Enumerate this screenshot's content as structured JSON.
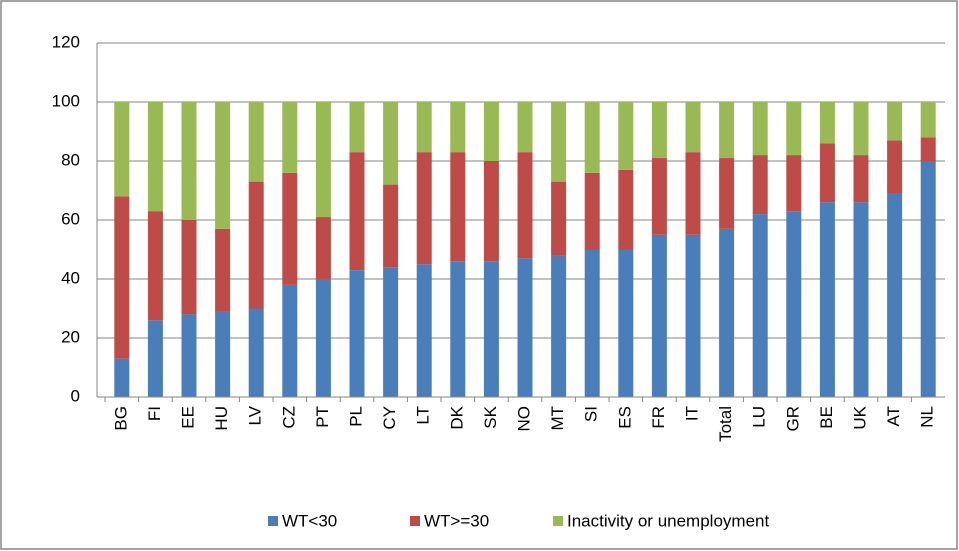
{
  "chart_data": {
    "type": "stacked-bar",
    "categories": [
      "BG",
      "FI",
      "EE",
      "HU",
      "LV",
      "CZ",
      "PT",
      "PL",
      "CY",
      "LT",
      "DK",
      "SK",
      "NO",
      "MT",
      "SI",
      "ES",
      "FR",
      "IT",
      "Total",
      "LU",
      "GR",
      "BE",
      "UK",
      "AT",
      "NL"
    ],
    "series": [
      {
        "name": "WT<30",
        "color": "#4a7ebb",
        "values": [
          13,
          26,
          28,
          29,
          30,
          38,
          40,
          43,
          44,
          45,
          46,
          46,
          47,
          48,
          50,
          50,
          55,
          55,
          57,
          62,
          63,
          66,
          66,
          69,
          80
        ]
      },
      {
        "name": "WT>=30",
        "color": "#be4b48",
        "values": [
          55,
          37,
          32,
          28,
          43,
          38,
          21,
          40,
          28,
          38,
          37,
          34,
          36,
          25,
          26,
          27,
          26,
          28,
          24,
          20,
          19,
          20,
          16,
          18,
          8
        ]
      },
      {
        "name": "Inactivity or unemployment",
        "color": "#98b954",
        "values": [
          32,
          37,
          40,
          43,
          27,
          24,
          39,
          17,
          28,
          17,
          17,
          20,
          17,
          27,
          24,
          23,
          19,
          17,
          19,
          18,
          18,
          14,
          18,
          13,
          12
        ]
      }
    ],
    "ylim": [
      0,
      120
    ],
    "yticks": [
      0,
      20,
      40,
      60,
      80,
      100,
      120
    ],
    "grid": true,
    "legend": "bottom"
  }
}
